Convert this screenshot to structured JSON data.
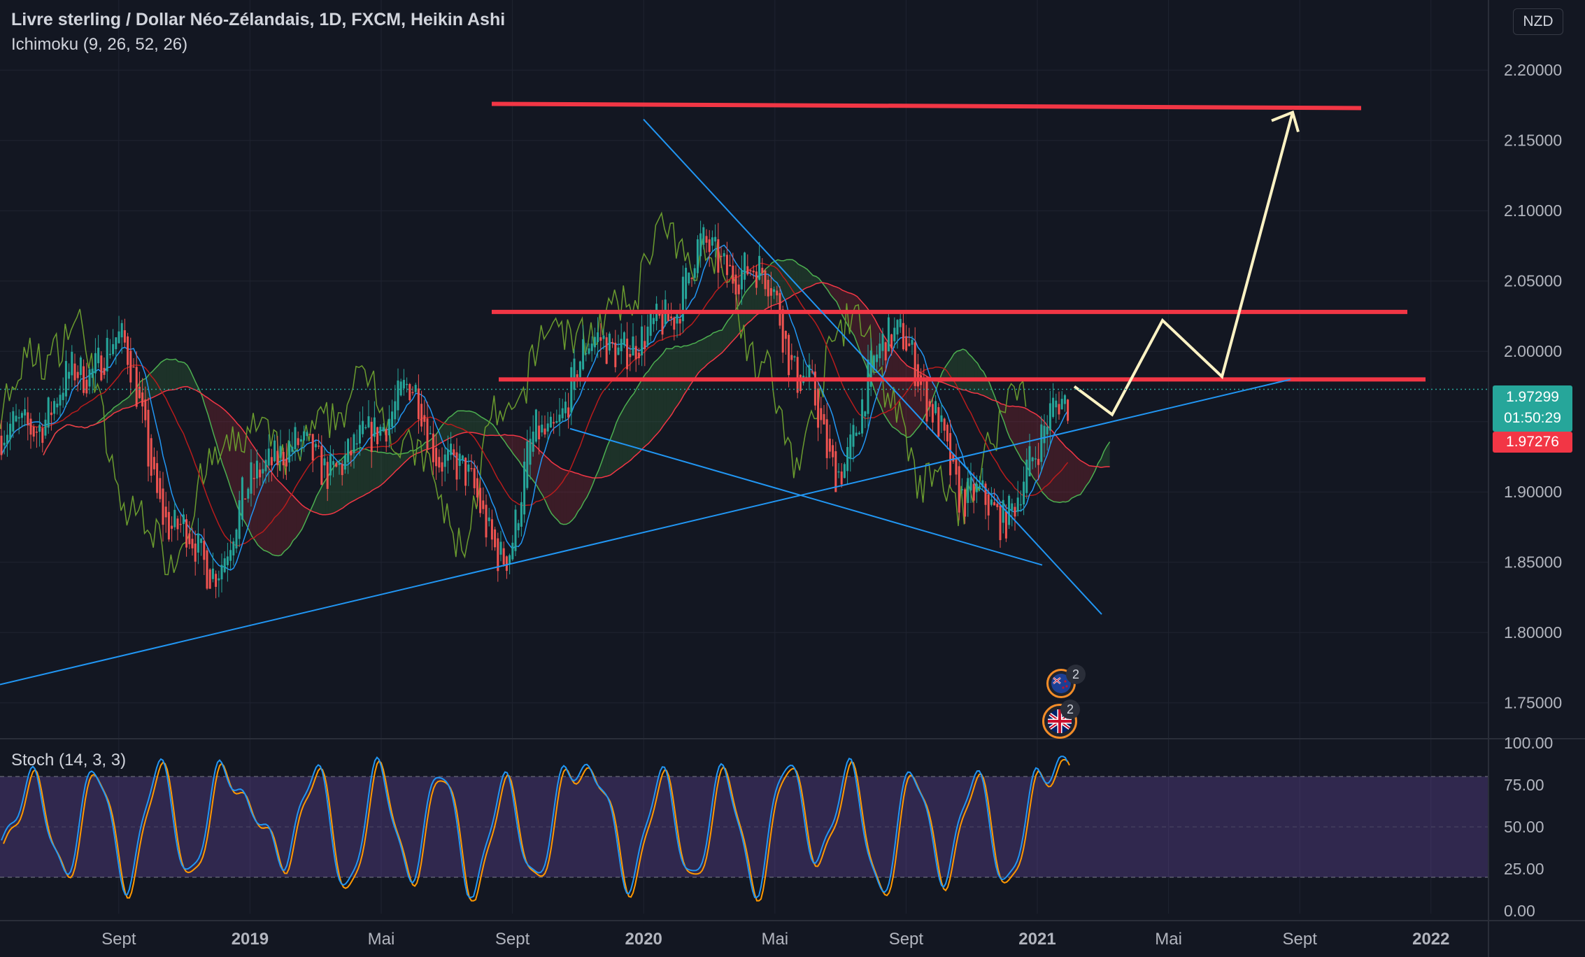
{
  "header": {
    "title": "Livre sterling / Dollar Néo-Zélandais, 1D, FXCM, Heikin Ashi",
    "indicator": "Ichimoku (9, 26, 52, 26)",
    "currency_button": "NZD",
    "stoch_label": "Stoch (14, 3, 3)"
  },
  "price_tags": {
    "last_price": "1.97299",
    "countdown": "01:50:29",
    "bid_price": "1.97276"
  },
  "events": [
    {
      "flag": "NZ",
      "count": "2"
    },
    {
      "flag": "UK",
      "count": "2"
    }
  ],
  "colors": {
    "background": "#131722",
    "grid": "#1f2330",
    "bull_candle": "#26a69a",
    "bear_candle": "#ef5350",
    "resistance_line": "#f23645",
    "trend_line": "#2196f3",
    "projection": "#fff3c4",
    "stoch_k": "#2196f3",
    "stoch_d": "#ff9800",
    "stoch_band": "#7e57c2"
  },
  "chart_data": [
    {
      "type": "line",
      "title": "Livre sterling / Dollar Néo-Zélandais, 1D, FXCM, Heikin Ashi",
      "ylim": [
        1.72,
        2.22
      ],
      "y_ticks": [
        "2.20000",
        "2.15000",
        "2.10000",
        "2.05000",
        "2.00000",
        "1.95000",
        "1.90000",
        "1.85000",
        "1.80000",
        "1.75000"
      ],
      "x_ticks": [
        "Sept",
        "2019",
        "Mai",
        "Sept",
        "2020",
        "Mai",
        "Sept",
        "2021",
        "Mai",
        "Sept",
        "2022"
      ],
      "x": [
        "2018-07",
        "2018-09",
        "2018-10",
        "2018-12",
        "2019-01",
        "2019-03",
        "2019-05",
        "2019-07",
        "2019-08",
        "2019-10",
        "2019-11",
        "2020-01",
        "2020-02",
        "2020-03",
        "2020-04",
        "2020-06",
        "2020-07",
        "2020-08",
        "2020-10",
        "2020-11",
        "2020-12",
        "2021-01",
        "2021-02",
        "2021-03"
      ],
      "series": [
        {
          "values": [
            1.94,
            1.98,
            2.01,
            1.87,
            1.85,
            1.93,
            1.92,
            1.97,
            1.93,
            1.86,
            1.94,
            2.01,
            2.0,
            2.03,
            2.07,
            2.05,
            1.98,
            1.92,
            2.02,
            1.95,
            1.9,
            1.88,
            1.92,
            1.97
          ]
        }
      ],
      "annotations": {
        "horizontal_levels": [
          2.175,
          2.028,
          1.98
        ],
        "projection_path": [
          [
            "2021-03",
            1.975
          ],
          [
            "2021-04",
            1.955
          ],
          [
            "2021-06",
            2.022
          ],
          [
            "2021-08",
            1.982
          ],
          [
            "2021-11",
            2.17
          ]
        ]
      }
    },
    {
      "type": "line",
      "title": "Stoch (14, 3, 3)",
      "ylim": [
        0,
        100
      ],
      "y_ticks": [
        "100.00",
        "75.00",
        "50.00",
        "25.00",
        "0.00"
      ],
      "band": [
        20,
        80
      ],
      "series": [
        {
          "values": [
            40,
            80,
            22,
            85,
            15,
            88,
            20,
            85,
            60,
            30,
            86,
            12,
            86,
            20,
            85,
            10,
            78,
            18,
            84,
            80,
            15,
            82,
            18,
            84,
            12,
            90,
            30,
            85,
            10,
            84,
            20,
            82,
            15,
            80,
            88
          ]
        }
      ]
    }
  ]
}
